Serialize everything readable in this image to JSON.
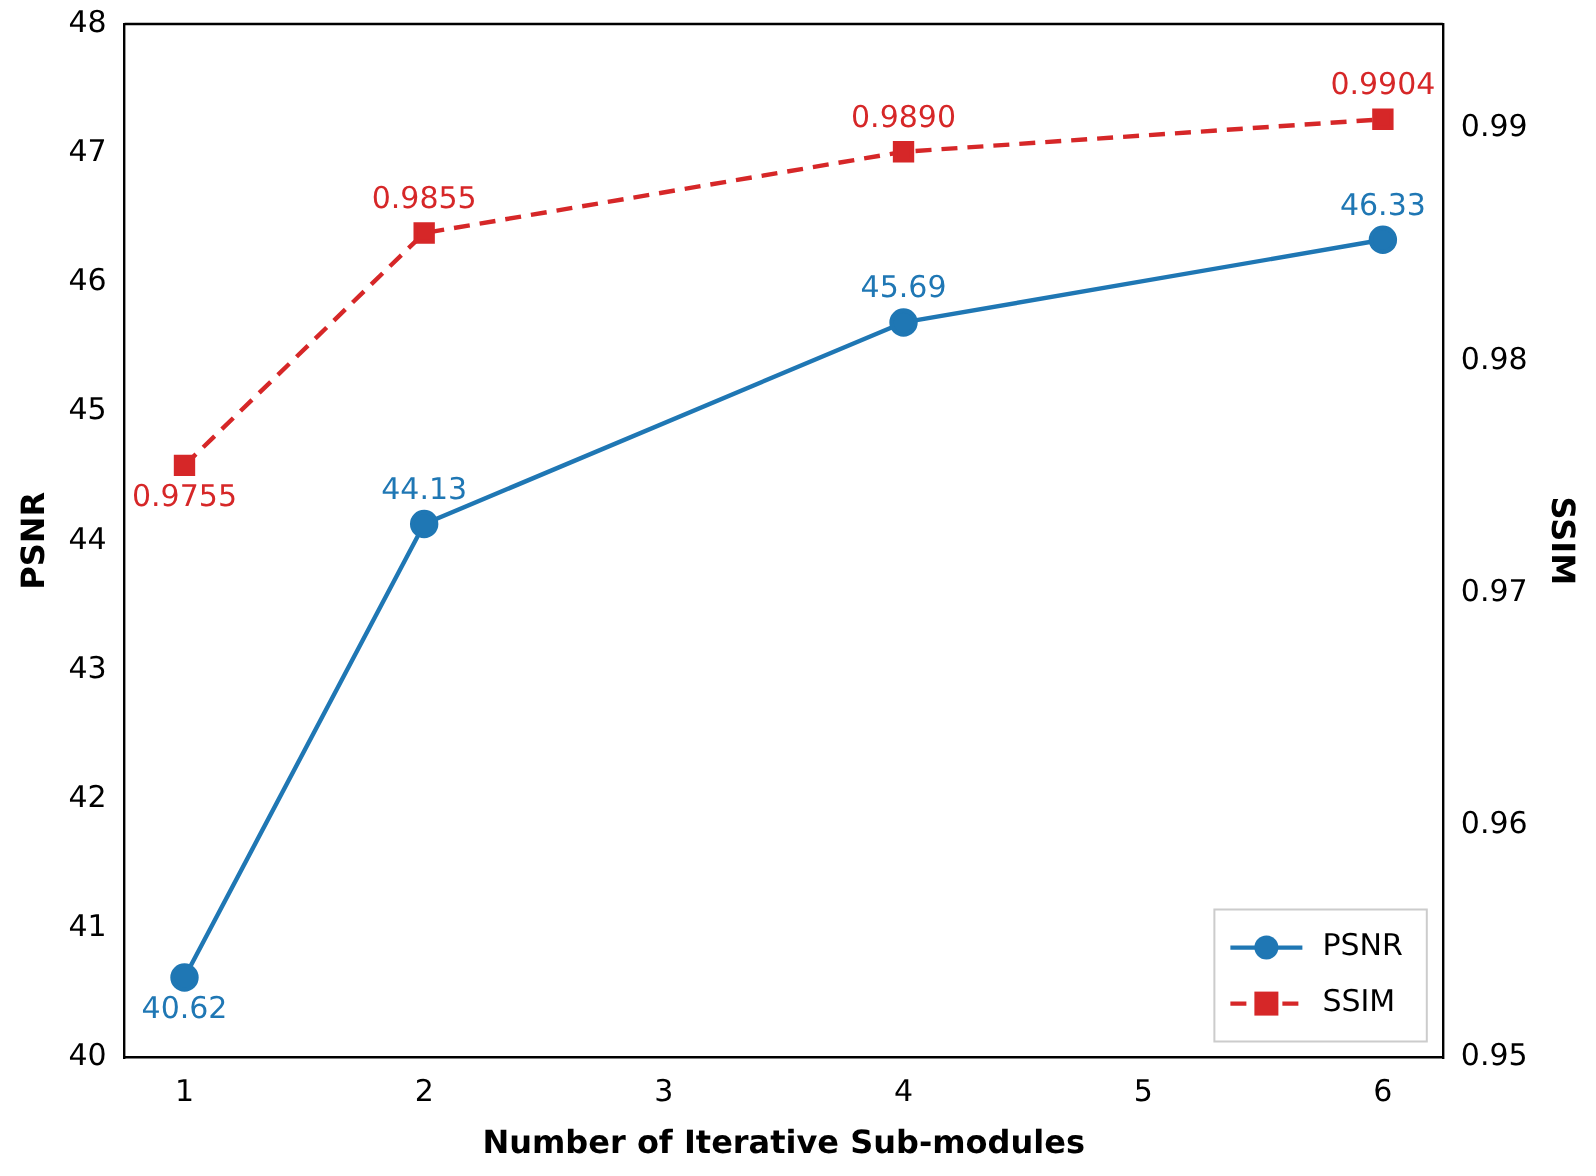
{
  "chart_data": {
    "type": "line",
    "xlabel": "Number of Iterative Sub-modules",
    "ylabel": "PSNR",
    "y2label": "SSIM",
    "x": [
      1,
      2,
      4,
      6
    ],
    "series": [
      {
        "name": "PSNR",
        "color": "#1f77b4",
        "values": [
          40.62,
          44.13,
          45.69,
          46.33
        ],
        "marker": "circle",
        "line_style": "solid"
      },
      {
        "name": "SSIM",
        "color": "#d62728",
        "values": [
          0.9755,
          0.9855,
          0.989,
          0.9904
        ],
        "axis": "y2",
        "marker": "square",
        "line_style": "dashed",
        "value_labels": [
          "0.9755",
          "0.9855",
          "0.9890",
          "0.9904"
        ]
      }
    ],
    "xlim": [
      0.75,
      6.25
    ],
    "xticks": [
      1,
      2,
      3,
      4,
      5,
      6
    ],
    "ylim": [
      40,
      48
    ],
    "yticks": [
      40,
      41,
      42,
      43,
      44,
      45,
      46,
      47,
      48
    ],
    "y2lim": [
      0.95,
      0.9945
    ],
    "y2ticks": [
      0.95,
      0.96,
      0.97,
      0.98,
      0.99
    ],
    "data_labels": true,
    "grid": false,
    "legend": "bottom right"
  }
}
